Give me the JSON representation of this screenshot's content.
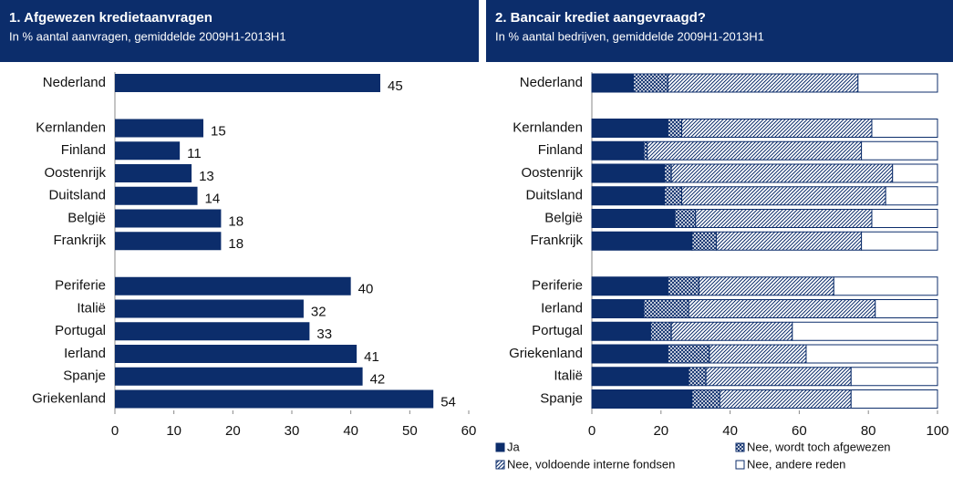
{
  "chart_data": [
    {
      "type": "bar",
      "orientation": "horizontal",
      "title": "1. Afgewezen kredietaanvragen",
      "subtitle": "In % aantal aanvragen, gemiddelde 2009H1-2013H1",
      "categories": [
        "Nederland",
        null,
        "Kernlanden",
        "Finland",
        "Oostenrijk",
        "Duitsland",
        "België",
        "Frankrijk",
        null,
        "Periferie",
        "Italië",
        "Portugal",
        "Ierland",
        "Spanje",
        "Griekenland"
      ],
      "values": [
        45,
        null,
        15,
        11,
        13,
        14,
        18,
        18,
        null,
        40,
        32,
        33,
        41,
        42,
        54
      ],
      "color": "#0c2d6b",
      "xlim": [
        0,
        60
      ],
      "xticks": [
        0,
        10,
        20,
        30,
        40,
        50,
        60
      ]
    },
    {
      "type": "bar",
      "orientation": "horizontal",
      "stacked": true,
      "title": "2. Bancair krediet aangevraagd?",
      "subtitle": "In % aantal bedrijven, gemiddelde 2009H1-2013H1",
      "categories": [
        "Nederland",
        null,
        "Kernlanden",
        "Finland",
        "Oostenrijk",
        "Duitsland",
        "België",
        "Frankrijk",
        null,
        "Periferie",
        "Ierland",
        "Portugal",
        "Griekenland",
        "Italië",
        "Spanje"
      ],
      "series": [
        {
          "name": "Ja",
          "color": "#0c2d6b",
          "values": [
            12,
            null,
            22,
            15,
            21,
            21,
            24,
            29,
            null,
            22,
            15,
            17,
            22,
            28,
            29
          ]
        },
        {
          "name": "Nee, wordt toch afgewezen",
          "color": "#0c2d6b",
          "values": [
            10,
            null,
            4,
            1,
            2,
            5,
            6,
            7,
            null,
            9,
            13,
            6,
            12,
            5,
            8
          ]
        },
        {
          "name": "Nee, voldoende interne fondsen",
          "color": "#0c2d6b",
          "values": [
            55,
            null,
            55,
            62,
            64,
            59,
            51,
            42,
            null,
            39,
            54,
            35,
            28,
            42,
            38
          ]
        },
        {
          "name": "Nee, andere reden",
          "color": "#ffffff",
          "values": [
            23,
            null,
            19,
            22,
            13,
            15,
            19,
            22,
            null,
            30,
            18,
            42,
            38,
            25,
            25
          ]
        }
      ],
      "xlim": [
        0,
        100
      ],
      "xticks": [
        0,
        20,
        40,
        60,
        80,
        100
      ]
    }
  ]
}
